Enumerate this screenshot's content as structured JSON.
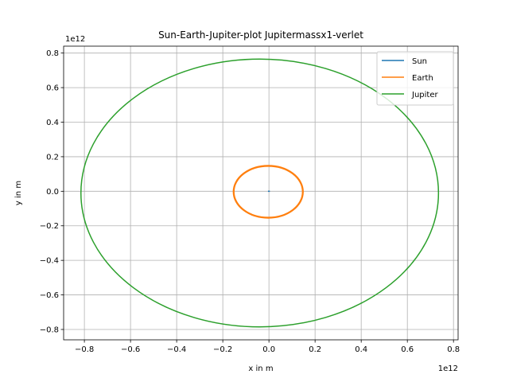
{
  "chart_data": {
    "type": "line",
    "title": "Sun-Earth-Jupiter-plot Jupitermassx1-verlet",
    "xlabel": "x in m",
    "ylabel": "y in m",
    "x_offset_label": "1e12",
    "y_offset_label": "1e12",
    "xlim": [
      -0.89,
      0.82
    ],
    "ylim": [
      -0.86,
      0.84
    ],
    "x_ticks": [
      -0.8,
      -0.6,
      -0.4,
      -0.2,
      0.0,
      0.2,
      0.4,
      0.6,
      0.8
    ],
    "x_tick_labels": [
      "−0.8",
      "−0.6",
      "−0.4",
      "−0.2",
      "0.0",
      "0.2",
      "0.4",
      "0.6",
      "0.8"
    ],
    "y_ticks": [
      -0.8,
      -0.6,
      -0.4,
      -0.2,
      0.0,
      0.2,
      0.4,
      0.6,
      0.8
    ],
    "y_tick_labels": [
      "−0.8",
      "−0.6",
      "−0.4",
      "−0.2",
      "0.0",
      "0.2",
      "0.4",
      "0.6",
      "0.8"
    ],
    "grid": true,
    "legend_position": "top-right",
    "series": [
      {
        "name": "Sun",
        "color": "#1f77b4",
        "orbit": {
          "center_x": 0.0,
          "center_y": 0.0,
          "radius_x": 0.0,
          "radius_y": 0.0,
          "line_width": 1.5
        }
      },
      {
        "name": "Earth",
        "color": "#ff7f0e",
        "orbit": {
          "center_x": -0.003,
          "center_y": -0.003,
          "radius_x": 0.15,
          "radius_y": 0.15,
          "line_width": 2.3
        }
      },
      {
        "name": "Jupiter",
        "color": "#2ca02c",
        "orbit": {
          "center_x": -0.04,
          "center_y": -0.01,
          "radius_x": 0.775,
          "radius_y": 0.775,
          "line_width": 1.5
        }
      }
    ]
  }
}
